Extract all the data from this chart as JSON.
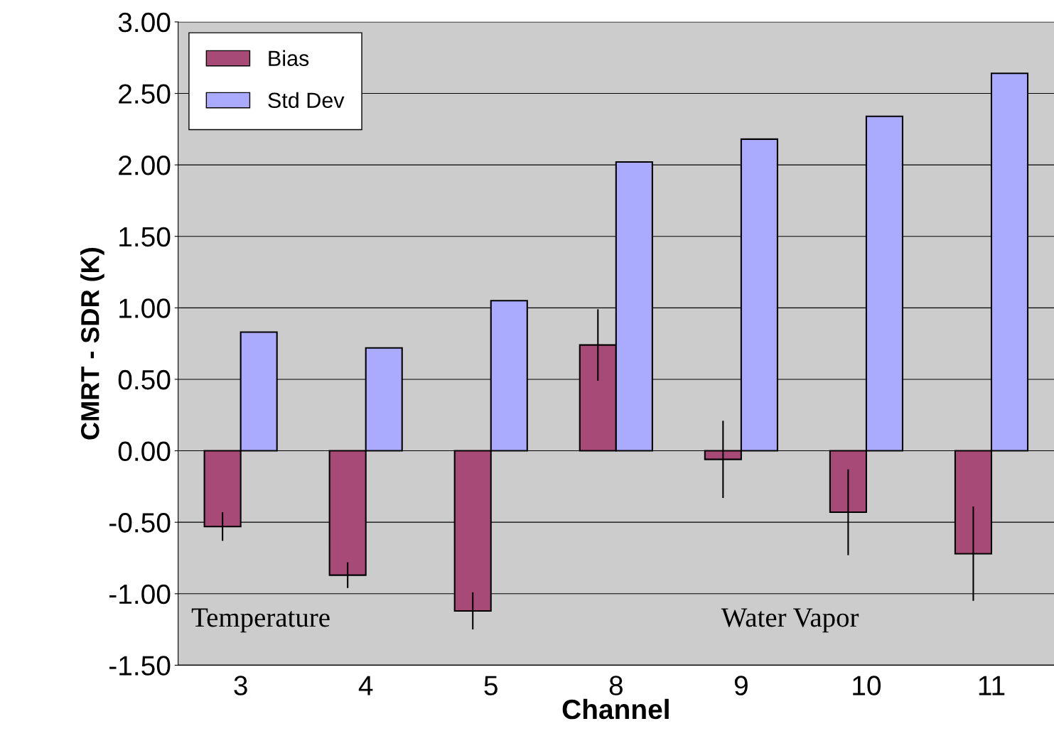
{
  "chart_data": {
    "type": "bar",
    "xlabel": "Channel",
    "ylabel": "CMRT - SDR (K)",
    "categories": [
      "3",
      "4",
      "5",
      "8",
      "9",
      "10",
      "11"
    ],
    "series": [
      {
        "name": "Bias",
        "color": "#a84a77",
        "values": [
          -0.53,
          -0.87,
          -1.12,
          0.74,
          -0.06,
          -0.43,
          -0.72
        ],
        "errors": [
          0.1,
          0.09,
          0.13,
          0.25,
          0.27,
          0.3,
          0.33
        ]
      },
      {
        "name": "Std Dev",
        "color": "#aaaaff",
        "values": [
          0.83,
          0.72,
          1.05,
          2.02,
          2.18,
          2.34,
          2.64
        ]
      }
    ],
    "ylim": [
      -1.5,
      3.0
    ],
    "yticks": [
      {
        "value": -1.5,
        "label": "-1.50"
      },
      {
        "value": -1.0,
        "label": "-1.00"
      },
      {
        "value": -0.5,
        "label": "-0.50"
      },
      {
        "value": 0.0,
        "label": "0.00"
      },
      {
        "value": 0.5,
        "label": "0.50"
      },
      {
        "value": 1.0,
        "label": "1.00"
      },
      {
        "value": 1.5,
        "label": "1.50"
      },
      {
        "value": 2.0,
        "label": "2.00"
      },
      {
        "value": 2.5,
        "label": "2.50"
      },
      {
        "value": 3.0,
        "label": "3.00"
      }
    ],
    "grid": "y",
    "legend": "top left",
    "annotations": [
      "Temperature",
      "Water Vapor"
    ]
  }
}
